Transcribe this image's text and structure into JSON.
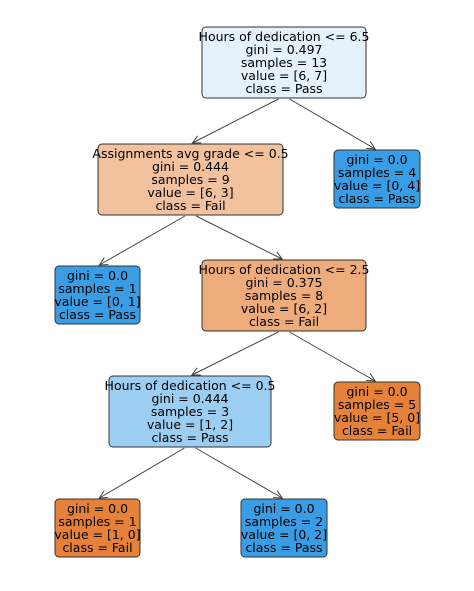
{
  "tree": {
    "nodes": [
      {
        "id": "n0",
        "fill": "#e5f2fc",
        "lines": [
          "Hours of dedication <= 6.5",
          "gini = 0.497",
          "samples = 13",
          "value = [6, 7]",
          "class = Pass"
        ]
      },
      {
        "id": "n1",
        "fill": "#f2c29f",
        "lines": [
          "Assignments avg grade <= 0.5",
          "gini = 0.444",
          "samples = 9",
          "value = [6, 3]",
          "class = Fail"
        ]
      },
      {
        "id": "n2",
        "fill": "#399de5",
        "lines": [
          "gini = 0.0",
          "samples = 4",
          "value = [0, 4]",
          "class = Pass"
        ]
      },
      {
        "id": "n3",
        "fill": "#399de5",
        "lines": [
          "gini = 0.0",
          "samples = 1",
          "value = [0, 1]",
          "class = Pass"
        ]
      },
      {
        "id": "n4",
        "fill": "#eeab7b",
        "lines": [
          "Hours of dedication <= 2.5",
          "gini = 0.375",
          "samples = 8",
          "value = [6, 2]",
          "class = Fail"
        ]
      },
      {
        "id": "n5",
        "fill": "#9ccef2",
        "lines": [
          "Hours of dedication <= 0.5",
          "gini = 0.444",
          "samples = 3",
          "value = [1, 2]",
          "class = Pass"
        ]
      },
      {
        "id": "n6",
        "fill": "#e58139",
        "lines": [
          "gini = 0.0",
          "samples = 5",
          "value = [5, 0]",
          "class = Fail"
        ]
      },
      {
        "id": "n7",
        "fill": "#e58139",
        "lines": [
          "gini = 0.0",
          "samples = 1",
          "value = [1, 0]",
          "class = Fail"
        ]
      },
      {
        "id": "n8",
        "fill": "#399de5",
        "lines": [
          "gini = 0.0",
          "samples = 2",
          "value = [0, 2]",
          "class = Pass"
        ]
      }
    ],
    "edges": [
      {
        "from": "n0",
        "to": "n1"
      },
      {
        "from": "n0",
        "to": "n2"
      },
      {
        "from": "n1",
        "to": "n3"
      },
      {
        "from": "n1",
        "to": "n4"
      },
      {
        "from": "n4",
        "to": "n5"
      },
      {
        "from": "n4",
        "to": "n6"
      },
      {
        "from": "n5",
        "to": "n7"
      },
      {
        "from": "n5",
        "to": "n8"
      }
    ]
  }
}
